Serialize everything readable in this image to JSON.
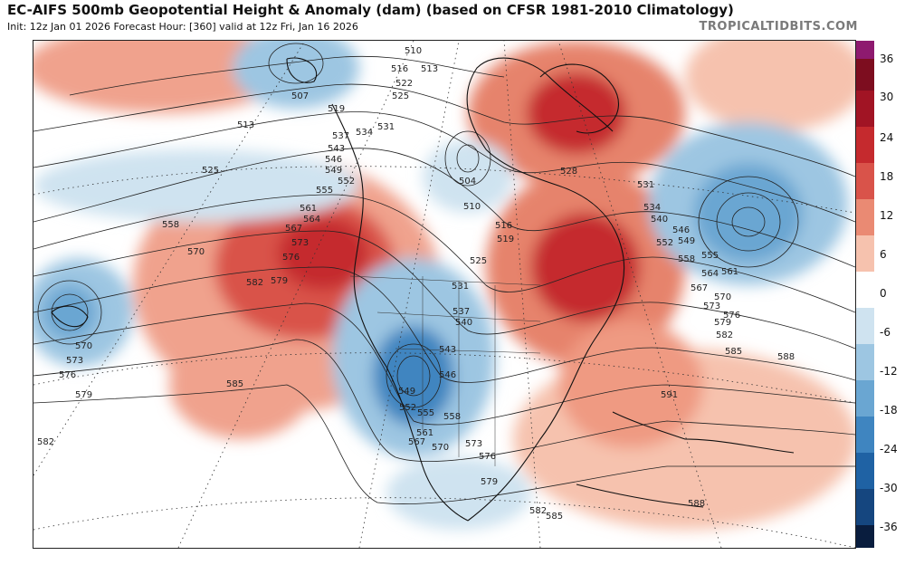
{
  "header": {
    "title": "EC-AIFS 500mb Geopotential Height & Anomaly (dam) (based on CFSR 1981-2010 Climatology)",
    "subtitle": "Init: 12z Jan 01 2026   Forecast Hour: [360]   valid at 12z Fri, Jan 16 2026",
    "brand": "TROPICALTIDBITS.COM"
  },
  "colorbar": {
    "ticks": [
      "36",
      "30",
      "24",
      "18",
      "12",
      "6",
      "0",
      "-6",
      "-12",
      "-18",
      "-24",
      "-30",
      "-36"
    ],
    "colors": [
      "#8e1a6f",
      "#7d0d1f",
      "#a11424",
      "#c52a2e",
      "#d9534a",
      "#ea8a73",
      "#f6c2ae",
      "#ffffff",
      "#cfe3f0",
      "#9dc6e2",
      "#6aa6d2",
      "#3f85c0",
      "#1f62a4",
      "#15467f",
      "#0f2f5a",
      "#091d3e"
    ]
  },
  "map": {
    "contour_labels": [
      "510",
      "516",
      "513",
      "522",
      "525",
      "519",
      "507",
      "513",
      "531",
      "537",
      "534",
      "543",
      "546",
      "549",
      "552",
      "555",
      "525",
      "561",
      "564",
      "567",
      "558",
      "570",
      "573",
      "576",
      "579",
      "582",
      "585",
      "510",
      "504",
      "516",
      "519",
      "525",
      "528",
      "531",
      "534",
      "540",
      "546",
      "549",
      "552",
      "555",
      "558",
      "561",
      "564",
      "567",
      "570",
      "573",
      "576",
      "579",
      "582",
      "585",
      "588",
      "591",
      "531",
      "537",
      "540",
      "543",
      "546",
      "549",
      "552",
      "555",
      "558",
      "561",
      "567",
      "570",
      "573",
      "576",
      "579",
      "582",
      "585",
      "588",
      "570",
      "573",
      "576",
      "579",
      "582"
    ],
    "anomaly_extrema": [
      "36",
      "30",
      "24",
      "18",
      "12",
      "6",
      "0",
      "-6",
      "-12",
      "-18",
      "-24",
      "-30",
      "-36"
    ]
  }
}
